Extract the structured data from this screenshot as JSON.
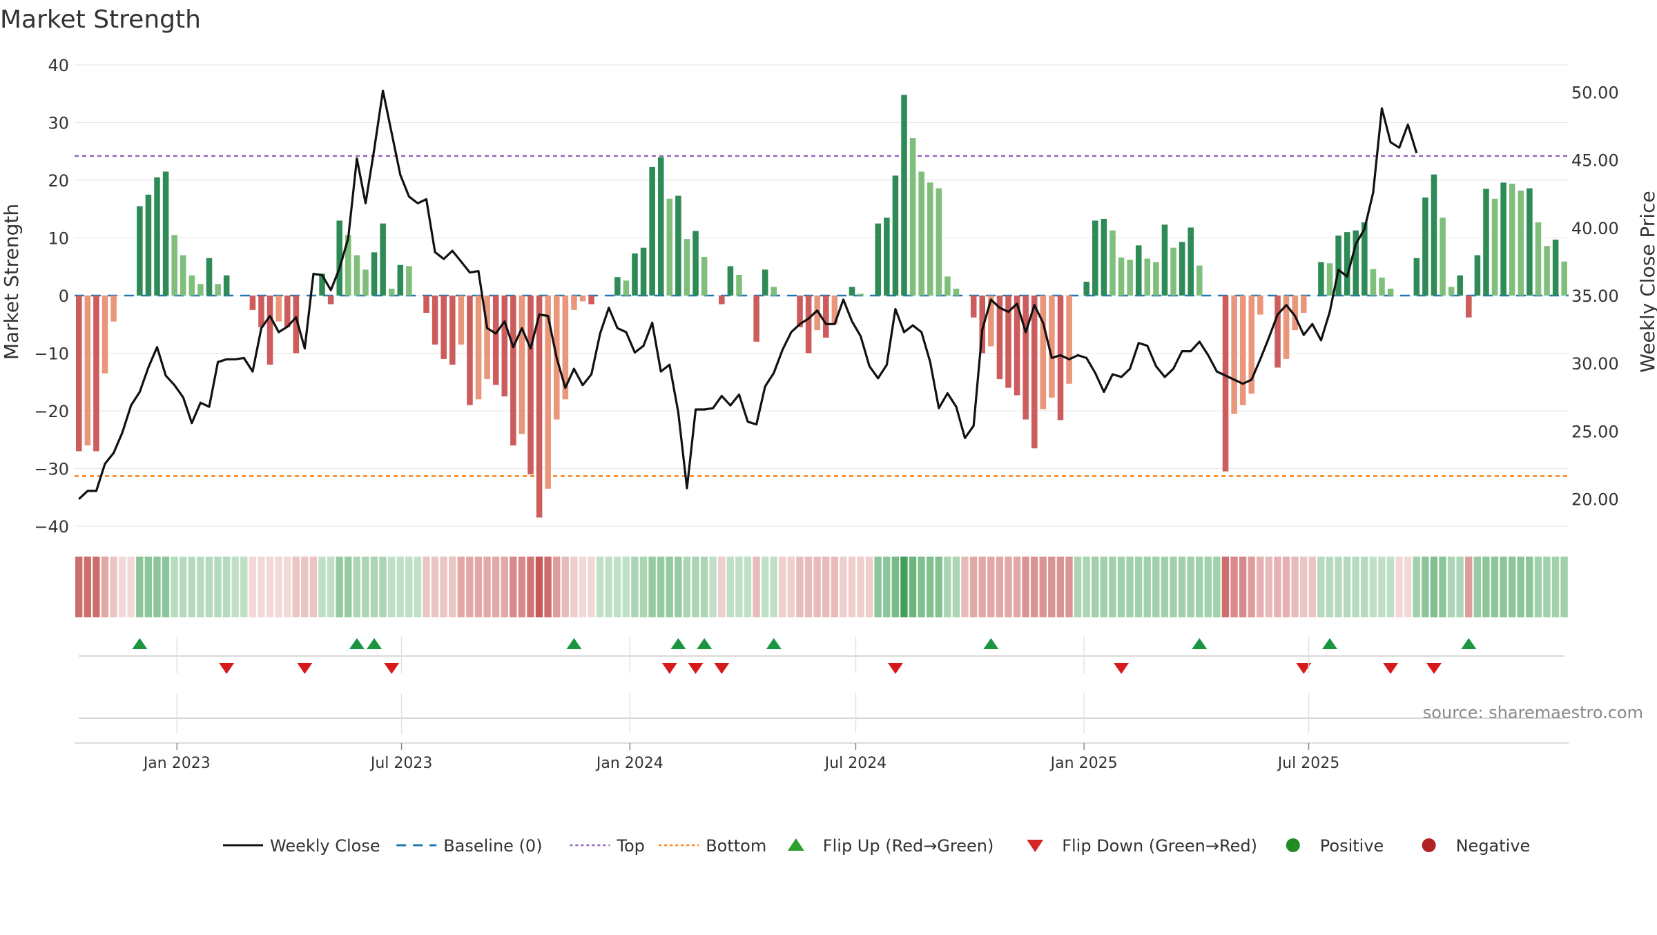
{
  "chart_data": {
    "type": "bar+line",
    "title": "Market Strength",
    "ylabel_left": "Market Strength",
    "ylabel_right": "Weekly Close Price",
    "source": "source: sharemaestro.com",
    "ylim_left": [
      -40,
      40
    ],
    "yticks_left": [
      "40",
      "30",
      "20",
      "10",
      "0",
      "−10",
      "−20",
      "−30",
      "−40"
    ],
    "ylim_right": [
      18,
      52
    ],
    "yticks_right": [
      "50.00",
      "45.00",
      "40.00",
      "35.00",
      "30.00",
      "25.00",
      "20.00"
    ],
    "top_line": 24.2,
    "bottom_line": -31.3,
    "x_start": "2022-10-14",
    "x_step_days": 7,
    "x_ticks": [
      {
        "date": "2023-01-01",
        "label": "Jan 2023"
      },
      {
        "date": "2023-07-01",
        "label": "Jul 2023"
      },
      {
        "date": "2024-01-01",
        "label": "Jan 2024"
      },
      {
        "date": "2024-07-01",
        "label": "Jul 2024"
      },
      {
        "date": "2025-01-01",
        "label": "Jan 2025"
      },
      {
        "date": "2025-07-01",
        "label": "Jul 2025"
      }
    ],
    "strength": [
      -27,
      -26,
      -27,
      -13.5,
      -4.5,
      0,
      0,
      15.5,
      17.5,
      20.5,
      21.5,
      10.5,
      7,
      3.5,
      2,
      6.5,
      2,
      3.5,
      0,
      0,
      -2.5,
      -5.5,
      -12,
      -4.5,
      -5.5,
      -10,
      0,
      0,
      3.8,
      -1.5,
      13,
      10.5,
      7,
      4.5,
      7.5,
      12.5,
      1.2,
      5.3,
      5.1,
      0,
      -3,
      -8.5,
      -11,
      -12,
      -8.5,
      -19,
      -18,
      -14.5,
      -15.5,
      -17.5,
      -26,
      -24,
      -31,
      -38.5,
      -33.5,
      -21.5,
      -18,
      -2.5,
      -1,
      -1.5,
      0,
      0,
      3.2,
      2.6,
      7.3,
      8.3,
      22.3,
      24,
      16.8,
      17.3,
      9.8,
      11.2,
      6.7,
      0,
      -1.5,
      5.1,
      3.6,
      0,
      -8,
      4.5,
      1.5,
      0,
      0,
      -5.5,
      -10,
      -6,
      -7.3,
      -5,
      0,
      1.5,
      0.3,
      0,
      12.5,
      13.5,
      20.8,
      34.8,
      27.3,
      21.5,
      19.6,
      18.6,
      3.3,
      1.2,
      0,
      -3.8,
      -10,
      -8.8,
      -14.5,
      -16,
      -17.3,
      -21.5,
      -26.5,
      -19.7,
      -17.7,
      -21.6,
      -15.3,
      0,
      2.4,
      13,
      13.3,
      11.3,
      6.6,
      6.2,
      8.7,
      6.4,
      5.8,
      12.3,
      8.3,
      9.3,
      11.8,
      5.2,
      0,
      0,
      -30.5,
      -20.5,
      -19,
      -17,
      -3.3,
      0,
      -12.5,
      -11,
      -6,
      -3,
      0,
      5.8,
      5.6,
      10.4,
      11,
      11.3,
      12.7,
      4.6,
      3.1,
      1.2,
      0,
      0,
      6.5,
      17,
      21,
      13.5,
      1.5,
      3.5,
      -3.8,
      7,
      18.5,
      16.8,
      19.6,
      19.4,
      18.2,
      18.6,
      12.7,
      8.6,
      9.7,
      5.9
    ],
    "weekly_close": [
      20,
      20.6,
      20.6,
      22.6,
      23.4,
      24.9,
      26.9,
      27.9,
      29.7,
      31.2,
      29.1,
      28.4,
      27.5,
      25.6,
      27.1,
      26.8,
      30.1,
      30.3,
      30.3,
      30.4,
      29.4,
      32.6,
      33.5,
      32.3,
      32.7,
      33.4,
      31.1,
      36.6,
      36.5,
      35.4,
      37,
      39.2,
      45.1,
      41.8,
      45.8,
      50.1,
      47,
      43.9,
      42.3,
      41.8,
      42.1,
      38.2,
      37.7,
      38.3,
      37.5,
      36.7,
      36.8,
      32.6,
      32.2,
      33.1,
      31.2,
      32.6,
      31.1,
      33.6,
      33.5,
      30.4,
      28.2,
      29.6,
      28.4,
      29.2,
      32.2,
      34.1,
      32.6,
      32.3,
      30.8,
      31.3,
      33,
      29.4,
      29.9,
      26.4,
      20.8,
      26.6,
      26.6,
      26.7,
      27.6,
      26.9,
      27.7,
      25.7,
      25.5,
      28.3,
      29.3,
      31,
      32.3,
      32.9,
      33.3,
      33.9,
      32.9,
      32.9,
      34.7,
      33.1,
      32,
      29.8,
      28.9,
      29.9,
      34,
      32.3,
      32.8,
      32.3,
      30.1,
      26.7,
      27.8,
      26.8,
      24.5,
      25.4,
      32.5,
      34.7,
      34.1,
      33.8,
      34.4,
      32.3,
      34.3,
      33,
      30.4,
      30.6,
      30.3,
      30.6,
      30.4,
      29.3,
      27.9,
      29.2,
      29,
      29.6,
      31.5,
      31.3,
      29.8,
      29,
      29.6,
      30.9,
      30.9,
      31.6,
      30.6,
      29.4,
      29.1,
      28.8,
      28.5,
      28.8,
      30.3,
      31.9,
      33.6,
      34.3,
      33.5,
      32.1,
      32.9,
      31.7,
      33.8,
      36.9,
      36.4,
      38.8,
      39.9,
      42.6,
      48.8,
      46.3,
      45.9,
      47.6,
      45.5
    ],
    "heat_strip": [
      -0.75,
      -0.75,
      -0.75,
      -0.45,
      -0.3,
      -0.2,
      -0.2,
      0.55,
      0.55,
      0.55,
      0.55,
      0.35,
      0.35,
      0.35,
      0.35,
      0.35,
      0.35,
      0.35,
      0.3,
      0.3,
      -0.2,
      -0.2,
      -0.2,
      -0.2,
      -0.2,
      -0.3,
      -0.3,
      -0.3,
      0.3,
      0.3,
      0.5,
      0.5,
      0.4,
      0.4,
      0.4,
      0.4,
      0.3,
      0.3,
      0.3,
      0.3,
      -0.3,
      -0.3,
      -0.3,
      -0.3,
      -0.45,
      -0.45,
      -0.45,
      -0.45,
      -0.45,
      -0.45,
      -0.6,
      -0.6,
      -0.7,
      -0.85,
      -0.75,
      -0.5,
      -0.35,
      -0.25,
      -0.2,
      -0.2,
      0.3,
      0.3,
      0.3,
      0.3,
      0.4,
      0.4,
      0.5,
      0.5,
      0.5,
      0.5,
      0.4,
      0.4,
      0.4,
      0.3,
      -0.25,
      0.3,
      0.3,
      0.3,
      -0.35,
      0.3,
      0.3,
      -0.25,
      -0.25,
      -0.35,
      -0.35,
      -0.35,
      -0.35,
      -0.35,
      -0.25,
      -0.25,
      -0.25,
      -0.25,
      0.55,
      0.55,
      0.65,
      0.9,
      0.7,
      0.6,
      0.6,
      0.6,
      0.4,
      0.4,
      -0.35,
      -0.45,
      -0.45,
      -0.45,
      -0.45,
      -0.45,
      -0.45,
      -0.55,
      -0.55,
      -0.55,
      -0.55,
      -0.55,
      -0.55,
      0.4,
      0.4,
      0.45,
      0.45,
      0.45,
      0.45,
      0.45,
      0.45,
      0.45,
      0.45,
      0.45,
      0.45,
      0.45,
      0.45,
      0.45,
      0.45,
      0.45,
      -0.75,
      -0.6,
      -0.6,
      -0.5,
      -0.4,
      -0.35,
      -0.4,
      -0.4,
      -0.35,
      -0.3,
      -0.3,
      0.35,
      0.35,
      0.35,
      0.35,
      0.35,
      0.35,
      0.3,
      0.3,
      0.3,
      -0.2,
      -0.2,
      0.45,
      0.55,
      0.6,
      0.55,
      0.4,
      0.4,
      -0.5,
      0.5,
      0.55,
      0.55,
      0.55,
      0.55,
      0.55,
      0.55,
      0.45,
      0.45,
      0.45,
      0.45
    ],
    "flip_up_index": [
      7,
      32,
      34,
      57,
      69,
      72,
      80,
      105,
      129,
      144,
      160
    ],
    "flip_down_index": [
      17,
      26,
      36,
      68,
      71,
      74,
      94,
      120,
      141,
      151,
      156
    ],
    "legend": [
      {
        "label": "Weekly Close",
        "kind": "line",
        "color": "#111111"
      },
      {
        "label": "Baseline (0)",
        "kind": "dash",
        "color": "#1f77b4"
      },
      {
        "label": "Top",
        "kind": "dot",
        "color": "#9467bd"
      },
      {
        "label": "Bottom",
        "kind": "dot",
        "color": "#ff7f0e"
      },
      {
        "label": "Flip Up (Red→Green)",
        "kind": "tri-up",
        "color": "#2ca02c"
      },
      {
        "label": "Flip Down (Green→Red)",
        "kind": "tri-down",
        "color": "#d62728"
      },
      {
        "label": "Positive",
        "kind": "dot-marker",
        "color": "#228b22"
      },
      {
        "label": "Negative",
        "kind": "dot-marker",
        "color": "#b22222"
      }
    ],
    "colors": {
      "pos_strong": "#2e8b57",
      "pos_light": "#7fbf7b",
      "neg_strong": "#cd5c5c",
      "neg_light": "#e9967a",
      "grid": "#e6e6e6",
      "top": "#9467bd",
      "bottom": "#ff7f0e",
      "baseline": "#1f77b4",
      "flip_up": "#1a9641",
      "flip_down": "#d7191c"
    }
  }
}
